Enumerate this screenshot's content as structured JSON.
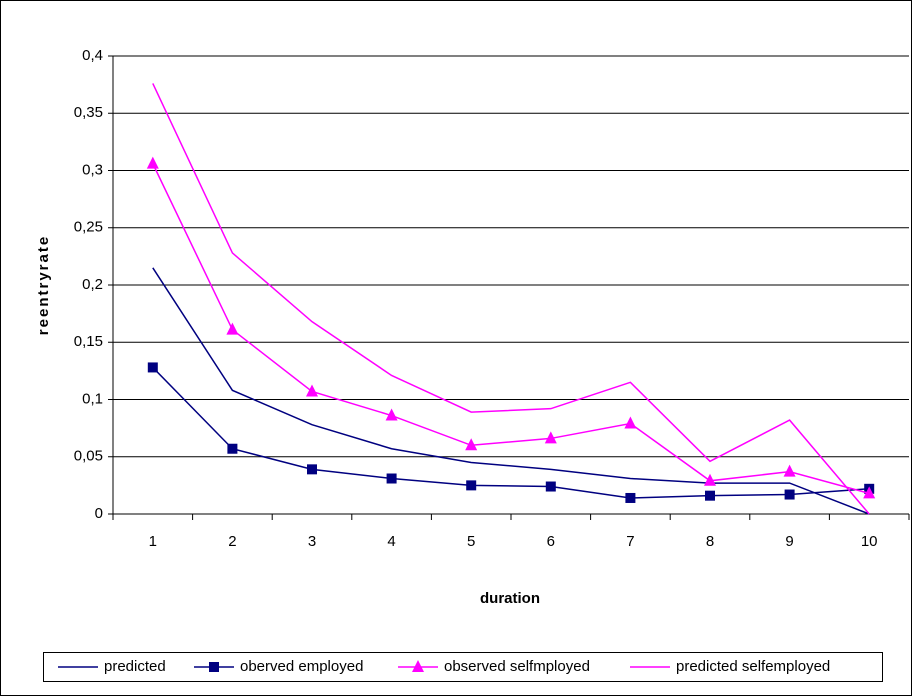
{
  "chart_data": {
    "type": "line",
    "x_label": "duration",
    "y_label": "reentryrate",
    "categories": [
      "1",
      "2",
      "3",
      "4",
      "5",
      "6",
      "7",
      "8",
      "9",
      "10"
    ],
    "series": [
      {
        "name": "predicted",
        "color": "#000080",
        "marker": null,
        "values": [
          0.215,
          0.108,
          0.078,
          0.057,
          0.045,
          0.039,
          0.031,
          0.027,
          0.027,
          0
        ]
      },
      {
        "name": "oberved employed",
        "color": "#000080",
        "marker": "square",
        "values": [
          0.128,
          0.057,
          0.039,
          0.031,
          0.025,
          0.024,
          0.014,
          0.016,
          0.017,
          0.022
        ]
      },
      {
        "name": "observed selfmployed",
        "color": "#ff00ff",
        "marker": "triangle",
        "values": [
          0.306,
          0.161,
          0.107,
          0.086,
          0.06,
          0.066,
          0.079,
          0.029,
          0.037,
          0.018
        ]
      },
      {
        "name": "predicted selfemployed",
        "color": "#ff00ff",
        "marker": null,
        "values": [
          0.376,
          0.228,
          0.168,
          0.121,
          0.089,
          0.092,
          0.115,
          0.046,
          0.082,
          0
        ]
      }
    ],
    "ylim": [
      0,
      0.4
    ],
    "yticks": [
      0,
      {
        "value": 0.05,
        "label": "0,05"
      },
      {
        "value": 0.1,
        "label": "0,1"
      },
      {
        "value": 0.15,
        "label": "0,15"
      },
      {
        "value": 0.2,
        "label": "0,2"
      },
      {
        "value": 0.25,
        "label": "0,25"
      },
      {
        "value": 0.3,
        "label": "0,3"
      },
      {
        "value": 0.35,
        "label": "0,35"
      },
      {
        "value": 0.4,
        "label": "0,4"
      }
    ],
    "grid": true,
    "legend": "bottom"
  }
}
